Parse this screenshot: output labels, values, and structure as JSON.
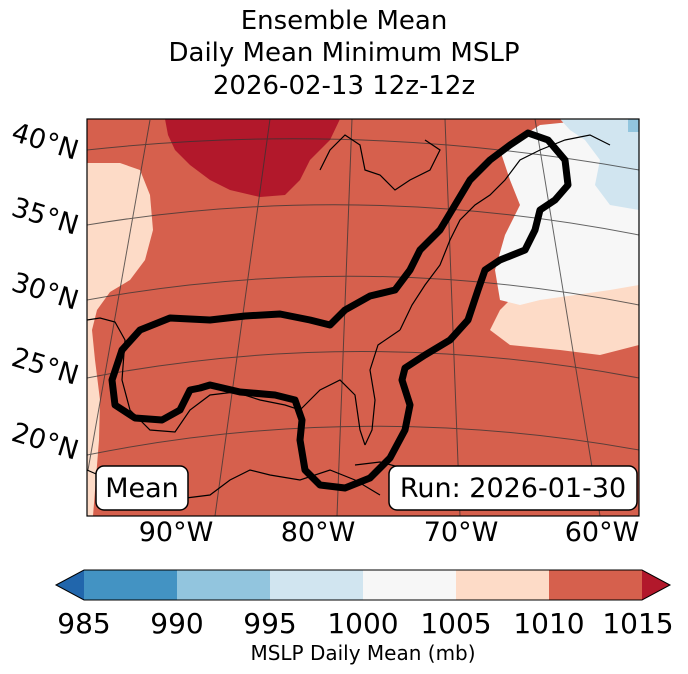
{
  "title": {
    "line1": "Ensemble Mean",
    "line2": "Daily Mean Minimum MSLP",
    "line3": "2026-02-13 12z-12z"
  },
  "map": {
    "lat_labels": [
      "40°N",
      "35°N",
      "30°N",
      "25°N",
      "20°N"
    ],
    "lon_labels": [
      "90°W",
      "80°W",
      "70°W",
      "60°W"
    ],
    "mean_box": "Mean",
    "run_box": "Run: 2026-01-30"
  },
  "colorbar": {
    "ticks": [
      "985",
      "990",
      "995",
      "1000",
      "1005",
      "1010",
      "1015"
    ],
    "label": "MSLP Daily Mean (mb)",
    "colors": {
      "under": "#2166ac",
      "985_990": "#4393c3",
      "990_995": "#92c5de",
      "995_1000": "#d1e5f0",
      "1000_1005": "#f7f7f7",
      "1005_1010": "#fddbc7",
      "1010_1015": "#d6604d",
      "over": "#b2182b"
    }
  }
}
